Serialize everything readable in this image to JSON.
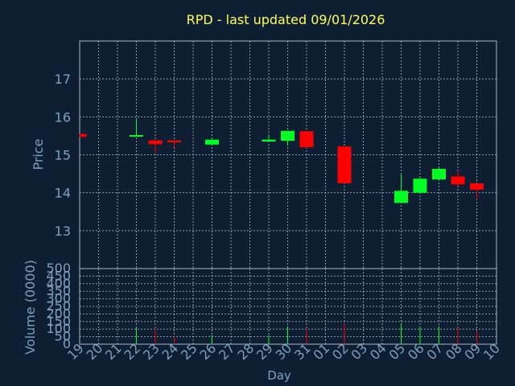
{
  "chart_data": [
    {
      "type": "candlestick",
      "title": "RPD - last updated 09/01/2026",
      "ylabel": "Price",
      "ylim": [
        12,
        18
      ],
      "yticks": [
        "13",
        "14",
        "15",
        "16",
        "17"
      ],
      "categories": [
        "19",
        "20",
        "21",
        "22",
        "23",
        "24",
        "25",
        "26",
        "27",
        "28",
        "29",
        "30",
        "31",
        "01",
        "02",
        "03",
        "04",
        "05",
        "06",
        "07",
        "08",
        "09",
        "10"
      ],
      "candles": [
        {
          "day": "19",
          "open": 15.55,
          "high": 15.55,
          "low": 15.47,
          "close": 15.47
        },
        {
          "day": "22",
          "open": 15.5,
          "high": 15.95,
          "low": 15.48,
          "close": 15.52
        },
        {
          "day": "23",
          "open": 15.38,
          "high": 15.38,
          "low": 15.05,
          "close": 15.28
        },
        {
          "day": "24",
          "open": 15.38,
          "high": 15.38,
          "low": 15.2,
          "close": 15.33
        },
        {
          "day": "26",
          "open": 15.27,
          "high": 15.4,
          "low": 15.27,
          "close": 15.4
        },
        {
          "day": "29",
          "open": 15.35,
          "high": 15.5,
          "low": 15.35,
          "close": 15.4
        },
        {
          "day": "30",
          "open": 15.37,
          "high": 15.63,
          "low": 15.25,
          "close": 15.63
        },
        {
          "day": "31",
          "open": 15.62,
          "high": 15.62,
          "low": 15.18,
          "close": 15.2
        },
        {
          "day": "02",
          "open": 15.22,
          "high": 15.22,
          "low": 14.25,
          "close": 14.25
        },
        {
          "day": "05",
          "open": 13.73,
          "high": 14.5,
          "low": 13.73,
          "close": 14.05
        },
        {
          "day": "06",
          "open": 14.0,
          "high": 14.42,
          "low": 14.0,
          "close": 14.37
        },
        {
          "day": "07",
          "open": 14.35,
          "high": 14.65,
          "low": 14.35,
          "close": 14.63
        },
        {
          "day": "08",
          "open": 14.43,
          "high": 14.58,
          "low": 14.18,
          "close": 14.22
        },
        {
          "day": "09",
          "open": 14.25,
          "high": 14.25,
          "low": 13.82,
          "close": 14.08
        }
      ],
      "colors": {
        "up": "#00ff22",
        "down": "#ff0000"
      }
    },
    {
      "type": "bar",
      "ylabel": "Volume (0000)",
      "xlabel": "Day",
      "ylim": [
        0,
        500
      ],
      "yticks": [
        "0",
        "50",
        "100",
        "150",
        "200",
        "250",
        "300",
        "350",
        "400",
        "450",
        "500"
      ],
      "categories": [
        "19",
        "20",
        "21",
        "22",
        "23",
        "24",
        "25",
        "26",
        "27",
        "28",
        "29",
        "30",
        "31",
        "01",
        "02",
        "03",
        "04",
        "05",
        "06",
        "07",
        "08",
        "09",
        "10"
      ],
      "volumes": [
        {
          "day": "19",
          "value": 0,
          "dir": "down"
        },
        {
          "day": "22",
          "value": 110,
          "dir": "up"
        },
        {
          "day": "23",
          "value": 100,
          "dir": "down"
        },
        {
          "day": "24",
          "value": 50,
          "dir": "down"
        },
        {
          "day": "26",
          "value": 60,
          "dir": "up"
        },
        {
          "day": "29",
          "value": 60,
          "dir": "up"
        },
        {
          "day": "30",
          "value": 120,
          "dir": "up"
        },
        {
          "day": "31",
          "value": 100,
          "dir": "down"
        },
        {
          "day": "02",
          "value": 135,
          "dir": "down"
        },
        {
          "day": "05",
          "value": 140,
          "dir": "up"
        },
        {
          "day": "06",
          "value": 115,
          "dir": "up"
        },
        {
          "day": "07",
          "value": 120,
          "dir": "up"
        },
        {
          "day": "08",
          "value": 110,
          "dir": "down"
        },
        {
          "day": "09",
          "value": 90,
          "dir": "down"
        }
      ],
      "colors": {
        "up": "#00ff22",
        "down": "#ff0000"
      }
    }
  ]
}
